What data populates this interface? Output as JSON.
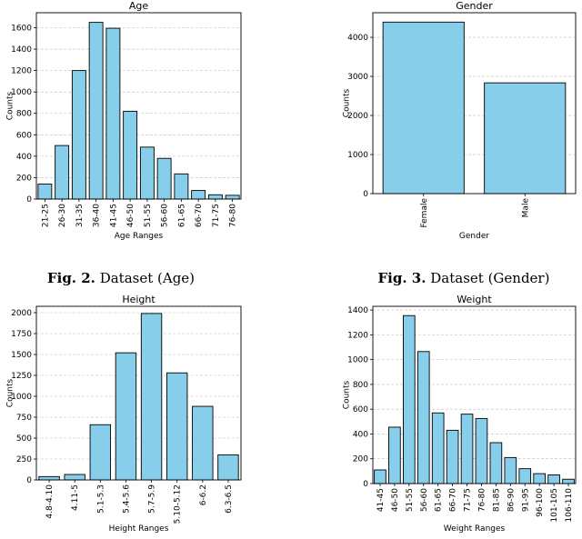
{
  "chart_data": [
    {
      "type": "bar",
      "title": "Age",
      "xlabel": "Age Ranges",
      "ylabel": "Counts",
      "color": "#87ceeb",
      "grid": true,
      "categories": [
        "21-25",
        "26-30",
        "31-35",
        "36-40",
        "41-45",
        "46-50",
        "51-55",
        "56-60",
        "61-65",
        "66-70",
        "71-75",
        "76-80"
      ],
      "values": [
        140,
        500,
        1200,
        1650,
        1595,
        820,
        485,
        380,
        235,
        80,
        40,
        35
      ],
      "ylim": [
        0,
        1740
      ],
      "yticks": [
        0,
        200,
        400,
        600,
        800,
        1000,
        1200,
        1400,
        1600
      ]
    },
    {
      "type": "bar",
      "title": "Gender",
      "xlabel": "Gender",
      "ylabel": "Counts",
      "color": "#87ceeb",
      "grid": true,
      "categories": [
        "Female",
        "Male"
      ],
      "values": [
        4390,
        2835
      ],
      "ylim": [
        0,
        4630
      ],
      "yticks": [
        0,
        1000,
        2000,
        3000,
        4000
      ]
    },
    {
      "type": "bar",
      "title": "Height",
      "xlabel": "Height Ranges",
      "ylabel": "Counts",
      "color": "#87ceeb",
      "grid": true,
      "categories": [
        "4.8-4.10",
        "4.11-5",
        "5.1-5.3",
        "5.4-5.6",
        "5.7-5.9",
        "5.10-5.12",
        "6-6.2",
        "6.3-6.5"
      ],
      "values": [
        40,
        65,
        660,
        1520,
        1990,
        1280,
        880,
        300
      ],
      "ylim": [
        0,
        2076
      ],
      "yticks": [
        0,
        250,
        500,
        750,
        1000,
        1250,
        1500,
        1750,
        2000
      ]
    },
    {
      "type": "bar",
      "title": "Weight",
      "xlabel": "Weight Ranges",
      "ylabel": "Counts",
      "color": "#87ceeb",
      "grid": true,
      "categories": [
        "41-45",
        "46-50",
        "51-55",
        "56-60",
        "61-65",
        "66-70",
        "71-75",
        "76-80",
        "81-85",
        "86-90",
        "91-95",
        "96-100",
        "101-105",
        "106-110"
      ],
      "values": [
        110,
        455,
        1355,
        1065,
        570,
        430,
        560,
        525,
        330,
        210,
        120,
        80,
        70,
        35
      ],
      "ylim": [
        0,
        1430
      ],
      "yticks": [
        0,
        200,
        400,
        600,
        800,
        1000,
        1200,
        1400
      ]
    }
  ],
  "captions": [
    {
      "label": "Fig. 2.",
      "text": "Dataset (Age)"
    },
    {
      "label": "Fig. 3.",
      "text": "Dataset (Gender)"
    }
  ]
}
